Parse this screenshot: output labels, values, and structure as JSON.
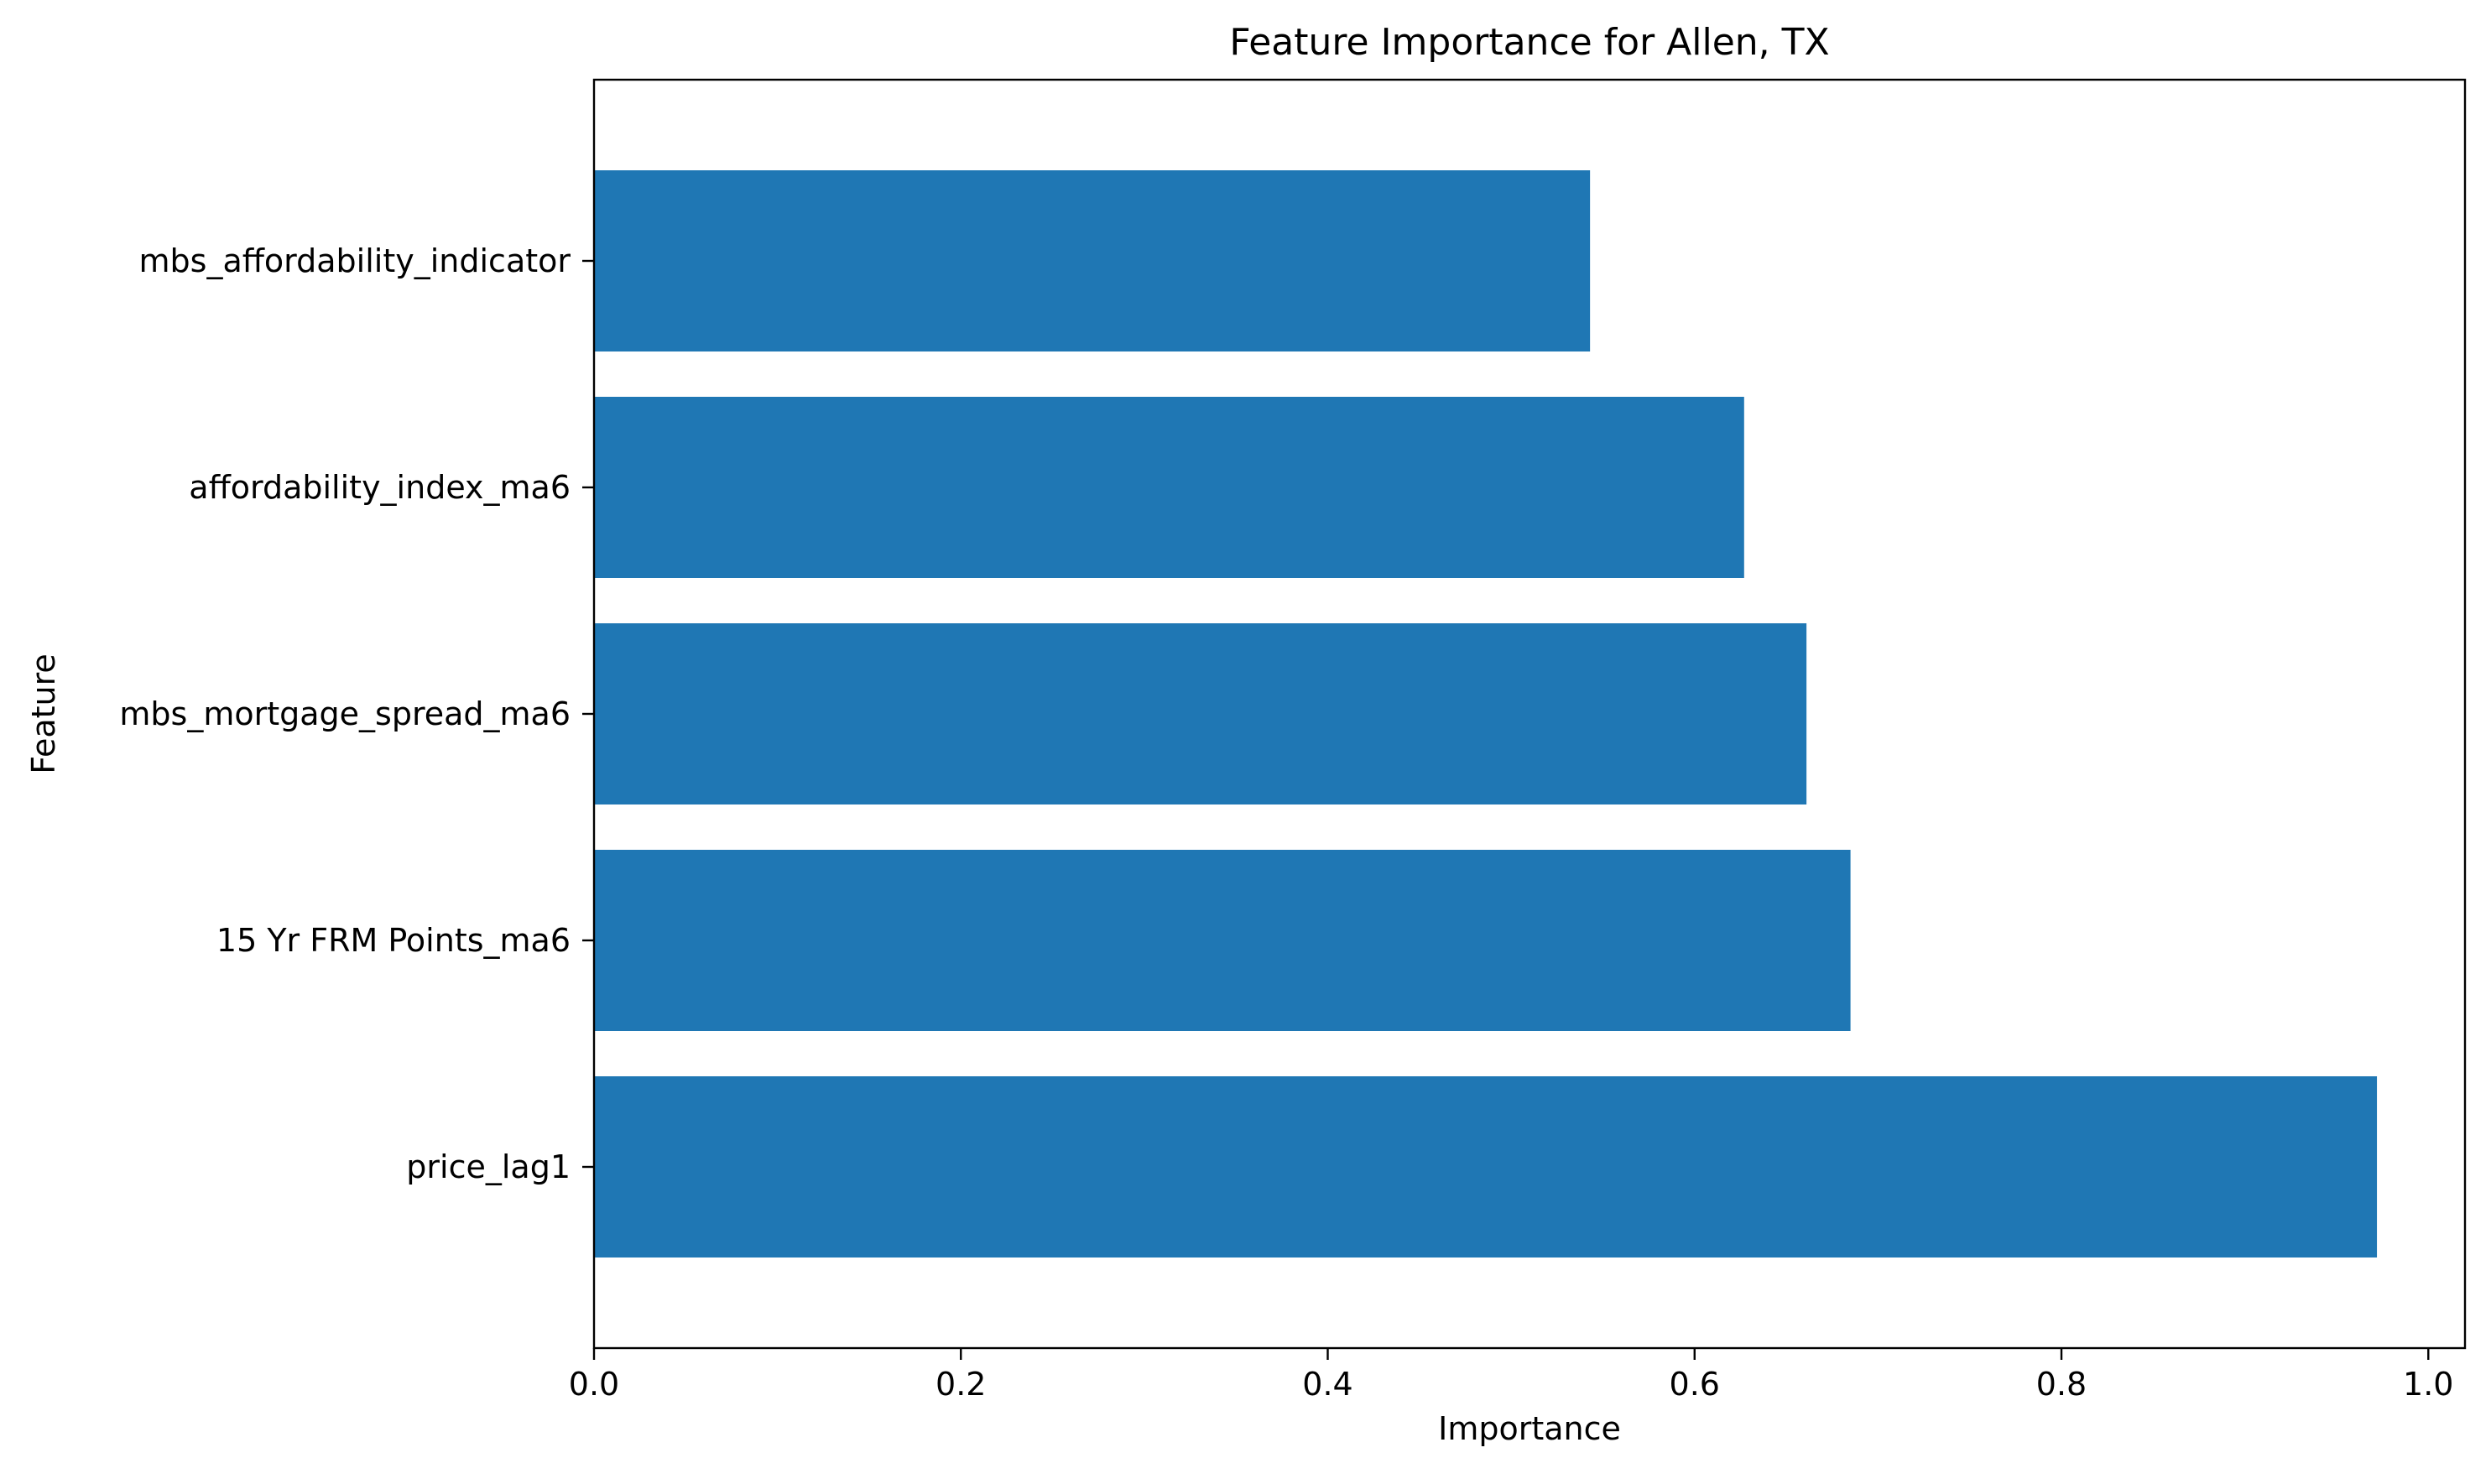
{
  "chart_data": {
    "type": "bar",
    "orientation": "horizontal",
    "title": "Feature Importance for Allen, TX",
    "xlabel": "Importance",
    "ylabel": "Feature",
    "categories": [
      "price_lag1",
      "15 Yr FRM Points_ma6",
      "mbs_mortgage_spread_ma6",
      "affordability_index_ma6",
      "mbs_affordability_indicator"
    ],
    "values": [
      0.972,
      0.685,
      0.661,
      0.627,
      0.543
    ],
    "xlim": [
      0.0,
      1.02
    ],
    "xticks": [
      0.0,
      0.2,
      0.4,
      0.6,
      0.8,
      1.0
    ],
    "xtick_labels": [
      "0.0",
      "0.2",
      "0.4",
      "0.6",
      "0.8",
      "1.0"
    ],
    "bar_color": "#1f77b4",
    "grid": false,
    "legend": "none"
  }
}
